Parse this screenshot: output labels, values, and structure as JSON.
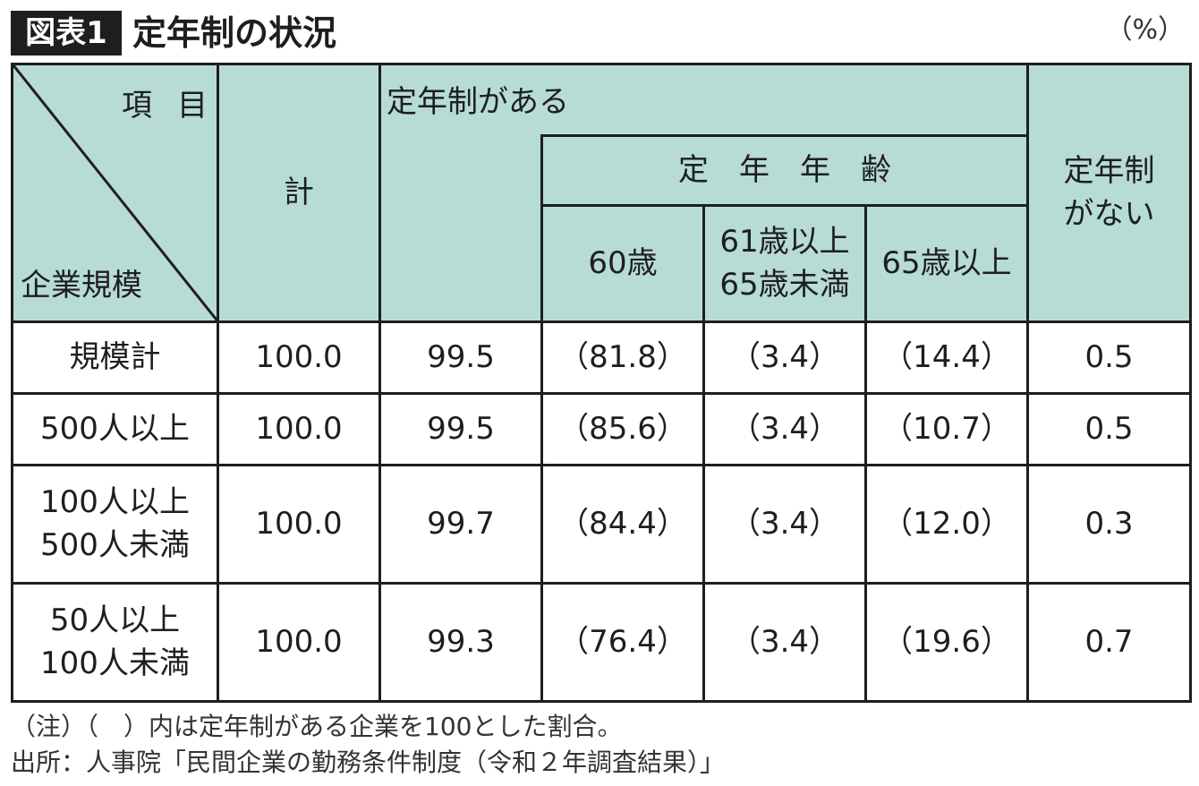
{
  "header": {
    "badge": "図表1",
    "title": "定年制の状況",
    "unit": "（%）"
  },
  "table": {
    "corner_top": "項目",
    "corner_bottom": "企業規模",
    "col_total": "計",
    "col_has": "定年制がある",
    "col_age": "定年年齢",
    "col_60": "60歳",
    "col_61_65_line1": "61歳以上",
    "col_61_65_line2": "65歳未満",
    "col_65plus": "65歳以上",
    "col_none_line1": "定年制",
    "col_none_line2": "がない",
    "rows": [
      {
        "label1": "規模計",
        "label2": "",
        "total": "100.0",
        "has": "99.5",
        "a60": "（81.8）",
        "a61": "（3.4）",
        "a65": "（14.4）",
        "none": "0.5"
      },
      {
        "label1": "500人以上",
        "label2": "",
        "total": "100.0",
        "has": "99.5",
        "a60": "（85.6）",
        "a61": "（3.4）",
        "a65": "（10.7）",
        "none": "0.5"
      },
      {
        "label1": "100人以上",
        "label2": "500人未満",
        "total": "100.0",
        "has": "99.7",
        "a60": "（84.4）",
        "a61": "（3.4）",
        "a65": "（12.0）",
        "none": "0.3"
      },
      {
        "label1": "50人以上",
        "label2": "100人未満",
        "total": "100.0",
        "has": "99.3",
        "a60": "（76.4）",
        "a61": "（3.4）",
        "a65": "（19.6）",
        "none": "0.7"
      }
    ]
  },
  "notes": {
    "note1": "（注）（　）内は定年制がある企業を100とした割合。",
    "source": "出所：人事院「民間企業の勤務条件制度（令和２年調査結果）」"
  },
  "colors": {
    "header_bg": "#b7dbd5",
    "border": "#1e1e1e"
  }
}
